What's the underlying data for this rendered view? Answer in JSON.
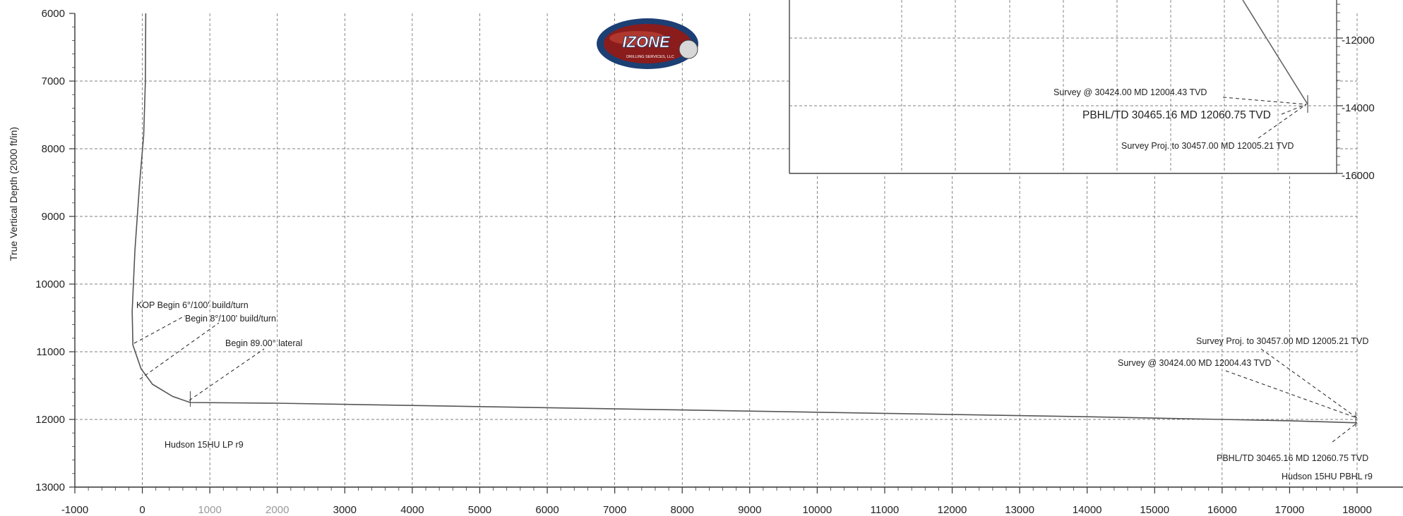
{
  "chart_data": {
    "type": "line",
    "xlabel": "",
    "ylabel": "True Vertical Depth (2000 ft/in)",
    "xlim": [
      -1000,
      18000
    ],
    "ylim": [
      6000,
      13000
    ],
    "y_inverted": true,
    "x_ticks": [
      "-1000",
      "0",
      "1000",
      "2000",
      "3000",
      "4000",
      "5000",
      "6000",
      "7000",
      "8000",
      "9000",
      "10000",
      "11000",
      "12000",
      "13000",
      "14000",
      "15000",
      "16000",
      "17000",
      "18000"
    ],
    "y_ticks": [
      "6000",
      "7000",
      "8000",
      "9000",
      "10000",
      "11000",
      "12000",
      "13000"
    ],
    "grid": true,
    "series": [
      {
        "x": [
          50,
          45,
          20,
          -40,
          -110,
          -150,
          -140,
          -20,
          150,
          450,
          710,
          2000,
          5000,
          8000,
          11000,
          14000,
          16000,
          17000,
          18000
        ],
        "y": [
          6000,
          7000,
          7800,
          8500,
          9500,
          10400,
          10900,
          11250,
          11480,
          11660,
          11750,
          11760,
          11810,
          11860,
          11910,
          11960,
          12000,
          12020,
          12050
        ]
      }
    ],
    "markers": [
      {
        "x": 710,
        "y": 11750
      },
      {
        "x": 17980,
        "y": 12050
      }
    ],
    "annotations": [
      {
        "text": "KOP Begin 6°/100' build/turn",
        "x": -160,
        "y": 10900
      },
      {
        "text": "Begin 8°/100' build/turn",
        "x": -50,
        "y": 11450
      },
      {
        "text": "Begin 89.00° lateral",
        "x": 710,
        "y": 11750
      },
      {
        "text": "Hudson 15HU LP r9",
        "x": 0,
        "y": 12000
      },
      {
        "text": "Survey Proj. to 30457.00 MD 12005.21 TVD",
        "x": 17980,
        "y": 12050
      },
      {
        "text": "Survey @ 30424.00 MD 12004.43 TVD",
        "x": 17980,
        "y": 12050
      },
      {
        "text": "PBHL/TD 30465.16 MD 12060.75 TVD",
        "x": 17980,
        "y": 12050
      },
      {
        "text": "Hudson 15HU PBHL r9",
        "x": 17980,
        "y": 12050
      }
    ],
    "inset": {
      "y_ticks": [
        "-12000",
        "-14000",
        "-16000"
      ],
      "annotations": [
        "Survey @ 30424.00 MD 12004.43 TVD",
        "PBHL/TD 30465.16 MD 12060.75 TVD",
        "Survey Proj. to 30457.00 MD 12005.21 TVD"
      ]
    }
  },
  "logo": {
    "text": "IZONE",
    "subtext": "DRILLING SERVICES, LLC",
    "colors": {
      "ring": "#1c3f74",
      "body": "#8a1c1c",
      "text": "#ffffff"
    }
  }
}
